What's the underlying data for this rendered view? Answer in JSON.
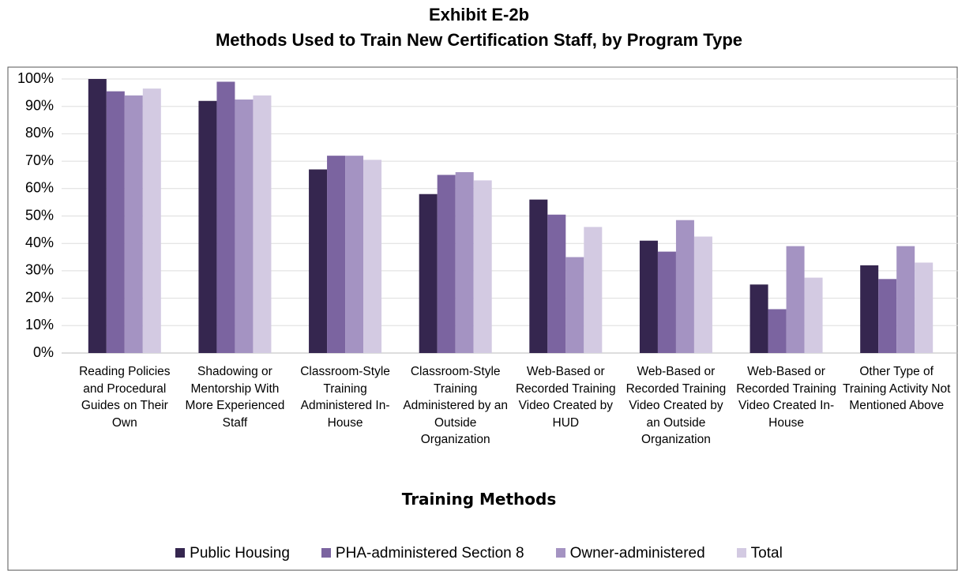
{
  "chart_data": {
    "type": "bar",
    "title": "Exhibit E-2b",
    "subtitle": "Methods Used to Train New Certification Staff, by Program Type",
    "x_label": "Training Methods",
    "categories": [
      "Reading Policies and Procedural Guides on Their Own",
      "Shadowing or Mentorship With More Experienced Staff",
      "Classroom-Style Training Administered In-House",
      "Classroom-Style Training Administered by an Outside Organization",
      "Web-Based or Recorded Training Video Created by HUD",
      "Web-Based or Recorded Training Video Created by an Outside Organization",
      "Web-Based or Recorded Training Video Created In-House",
      "Other Type of Training Activity Not Mentioned Above"
    ],
    "series": [
      {
        "name": "Public Housing",
        "color": "#35264f",
        "values": [
          100,
          92,
          67,
          58,
          56,
          41,
          25,
          32
        ]
      },
      {
        "name": "PHA-administered Section 8",
        "color": "#7b64a0",
        "values": [
          95.5,
          99,
          72,
          65,
          50.5,
          37,
          16,
          27
        ]
      },
      {
        "name": "Owner-administered",
        "color": "#a493c2",
        "values": [
          94,
          92.5,
          72,
          66,
          35,
          48.5,
          39,
          39
        ]
      },
      {
        "name": "Total",
        "color": "#d3cae2",
        "values": [
          96.5,
          94,
          70.5,
          63,
          46,
          42.5,
          27.5,
          33
        ]
      }
    ],
    "ylim": [
      0,
      100
    ],
    "yticks": [
      {
        "value": 0,
        "label": "0%"
      },
      {
        "value": 10,
        "label": "10%"
      },
      {
        "value": 20,
        "label": "20%"
      },
      {
        "value": 30,
        "label": "30%"
      },
      {
        "value": 40,
        "label": "40%"
      },
      {
        "value": 50,
        "label": "50%"
      },
      {
        "value": 60,
        "label": "60%"
      },
      {
        "value": 70,
        "label": "70%"
      },
      {
        "value": 80,
        "label": "80%"
      },
      {
        "value": 90,
        "label": "90%"
      },
      {
        "value": 100,
        "label": "100%"
      }
    ],
    "grid": true,
    "legend": "bottom"
  }
}
